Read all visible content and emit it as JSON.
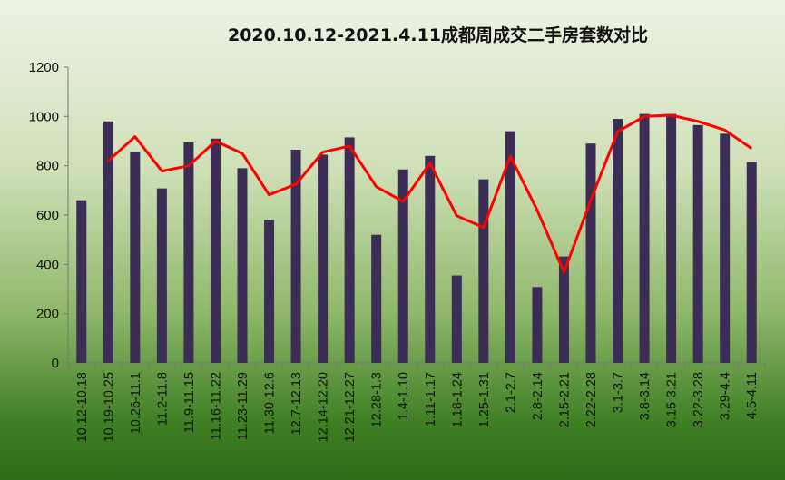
{
  "chart_data": {
    "type": "bar",
    "title": "2020.10.12-2021.4.11成都周成交二手房套数对比",
    "xlabel": "",
    "ylabel": "",
    "ylim": [
      0,
      1200
    ],
    "yticks": [
      0,
      200,
      400,
      600,
      800,
      1000,
      1200
    ],
    "grid": false,
    "categories": [
      "10.12-10.18",
      "10.19-10.25",
      "10.26-11.1",
      "11.2-11.8",
      "11.9-11.15",
      "11.16-11.22",
      "11.23-11.29",
      "11.30-12.6",
      "12.7-12.13",
      "12.14-12.20",
      "12.21-12.27",
      "12.28-1.3",
      "1.4-1.10",
      "1.11-1.17",
      "1.18-1.24",
      "1.25-1.31",
      "2.1-2.7",
      "2.8-2.14",
      "2.15-2.21",
      "2.22-2.28",
      "3.1-3.7",
      "3.8-3.14",
      "3.15-3.21",
      "3.22-3.28",
      "3.29-4.4",
      "4.5-4.11"
    ],
    "series": [
      {
        "type": "bar",
        "color": "#3b2d55",
        "values": [
          660,
          980,
          855,
          708,
          895,
          910,
          790,
          580,
          865,
          845,
          915,
          520,
          785,
          840,
          355,
          745,
          940,
          308,
          432,
          890,
          990,
          1010,
          1010,
          965,
          930,
          815
        ]
      },
      {
        "type": "line",
        "color": "#ff0000",
        "values": [
          null,
          820,
          918,
          778,
          800,
          900,
          850,
          682,
          725,
          855,
          880,
          715,
          655,
          810,
          597,
          550,
          838,
          620,
          368,
          660,
          938,
          1000,
          1005,
          980,
          945,
          870
        ]
      }
    ]
  }
}
